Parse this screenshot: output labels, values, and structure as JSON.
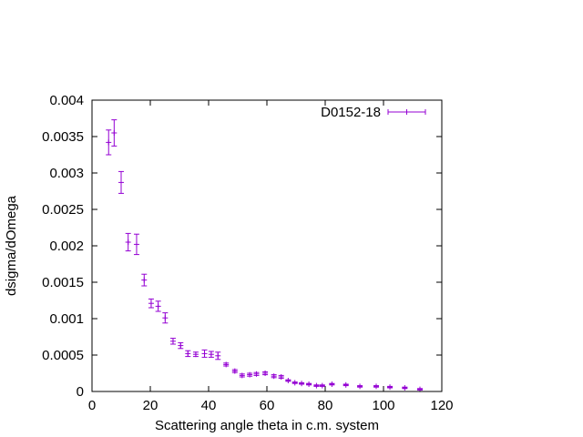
{
  "chart_data": {
    "type": "scatter",
    "xlabel": "Scattering angle theta in c.m. system",
    "ylabel": "dsigma/dOmega",
    "xlim": [
      0,
      120
    ],
    "ylim": [
      0,
      0.004
    ],
    "x_ticks": [
      "0",
      "20",
      "40",
      "60",
      "80",
      "100",
      "120"
    ],
    "y_ticks": [
      "0",
      "0.0005",
      "0.001",
      "0.0015",
      "0.002",
      "0.0025",
      "0.003",
      "0.0035",
      "0.004"
    ],
    "grid": false,
    "legend_position": "top-right",
    "series": [
      {
        "name": "D0152-18",
        "color": "#9400d3",
        "x": [
          5.7,
          7.6,
          10.0,
          12.4,
          15.3,
          17.9,
          20.3,
          22.7,
          25.1,
          27.8,
          30.4,
          32.9,
          35.6,
          38.6,
          40.9,
          43.2,
          46.0,
          49.0,
          51.5,
          54.1,
          56.4,
          59.4,
          62.4,
          64.9,
          67.3,
          69.6,
          71.9,
          74.4,
          77.0,
          79.0,
          82.3,
          87.1,
          91.9,
          97.5,
          102.2,
          107.3,
          112.5
        ],
        "y": [
          0.00342,
          0.00355,
          0.00287,
          0.00205,
          0.00202,
          0.00153,
          0.00121,
          0.00117,
          0.00101,
          0.00069,
          0.00063,
          0.00052,
          0.00051,
          0.00052,
          0.00051,
          0.00049,
          0.00037,
          0.00028,
          0.00022,
          0.00023,
          0.00024,
          0.00025,
          0.00021,
          0.0002,
          0.00015,
          0.00012,
          0.00011,
          0.0001,
          8e-05,
          8e-05,
          0.0001,
          9e-05,
          7e-05,
          7e-05,
          6e-05,
          5e-05,
          3e-05
        ],
        "err": [
          0.00017,
          0.00018,
          0.00015,
          0.00012,
          0.00014,
          8e-05,
          6e-05,
          7e-05,
          7e-05,
          4e-05,
          4e-05,
          4e-05,
          3e-05,
          5e-05,
          4e-05,
          5e-05,
          2e-05,
          2e-05,
          2e-05,
          2e-05,
          2e-05,
          2e-05,
          2e-05,
          2e-05,
          1e-05,
          1e-05,
          1e-05,
          1e-05,
          1e-05,
          1e-05,
          1e-05,
          1e-05,
          1e-05,
          1e-05,
          1e-05,
          1e-05,
          1e-05
        ]
      }
    ]
  }
}
